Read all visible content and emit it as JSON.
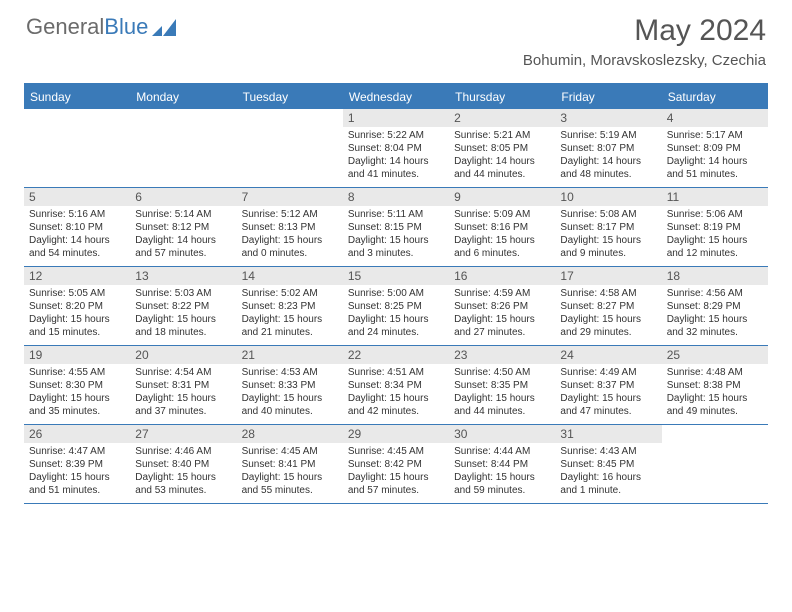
{
  "logo": {
    "text1": "General",
    "text2": "Blue"
  },
  "header": {
    "title": "May 2024",
    "location": "Bohumin, Moravskoslezsky, Czechia"
  },
  "colors": {
    "header_bg": "#3a7ab8",
    "daynum_bg": "#e9e9e9",
    "page_bg": "#ffffff",
    "text": "#333333"
  },
  "day_names": [
    "Sunday",
    "Monday",
    "Tuesday",
    "Wednesday",
    "Thursday",
    "Friday",
    "Saturday"
  ],
  "weeks": [
    [
      null,
      null,
      null,
      {
        "n": "1",
        "sunrise": "5:22 AM",
        "sunset": "8:04 PM",
        "daylight": "14 hours and 41 minutes."
      },
      {
        "n": "2",
        "sunrise": "5:21 AM",
        "sunset": "8:05 PM",
        "daylight": "14 hours and 44 minutes."
      },
      {
        "n": "3",
        "sunrise": "5:19 AM",
        "sunset": "8:07 PM",
        "daylight": "14 hours and 48 minutes."
      },
      {
        "n": "4",
        "sunrise": "5:17 AM",
        "sunset": "8:09 PM",
        "daylight": "14 hours and 51 minutes."
      }
    ],
    [
      {
        "n": "5",
        "sunrise": "5:16 AM",
        "sunset": "8:10 PM",
        "daylight": "14 hours and 54 minutes."
      },
      {
        "n": "6",
        "sunrise": "5:14 AM",
        "sunset": "8:12 PM",
        "daylight": "14 hours and 57 minutes."
      },
      {
        "n": "7",
        "sunrise": "5:12 AM",
        "sunset": "8:13 PM",
        "daylight": "15 hours and 0 minutes."
      },
      {
        "n": "8",
        "sunrise": "5:11 AM",
        "sunset": "8:15 PM",
        "daylight": "15 hours and 3 minutes."
      },
      {
        "n": "9",
        "sunrise": "5:09 AM",
        "sunset": "8:16 PM",
        "daylight": "15 hours and 6 minutes."
      },
      {
        "n": "10",
        "sunrise": "5:08 AM",
        "sunset": "8:17 PM",
        "daylight": "15 hours and 9 minutes."
      },
      {
        "n": "11",
        "sunrise": "5:06 AM",
        "sunset": "8:19 PM",
        "daylight": "15 hours and 12 minutes."
      }
    ],
    [
      {
        "n": "12",
        "sunrise": "5:05 AM",
        "sunset": "8:20 PM",
        "daylight": "15 hours and 15 minutes."
      },
      {
        "n": "13",
        "sunrise": "5:03 AM",
        "sunset": "8:22 PM",
        "daylight": "15 hours and 18 minutes."
      },
      {
        "n": "14",
        "sunrise": "5:02 AM",
        "sunset": "8:23 PM",
        "daylight": "15 hours and 21 minutes."
      },
      {
        "n": "15",
        "sunrise": "5:00 AM",
        "sunset": "8:25 PM",
        "daylight": "15 hours and 24 minutes."
      },
      {
        "n": "16",
        "sunrise": "4:59 AM",
        "sunset": "8:26 PM",
        "daylight": "15 hours and 27 minutes."
      },
      {
        "n": "17",
        "sunrise": "4:58 AM",
        "sunset": "8:27 PM",
        "daylight": "15 hours and 29 minutes."
      },
      {
        "n": "18",
        "sunrise": "4:56 AM",
        "sunset": "8:29 PM",
        "daylight": "15 hours and 32 minutes."
      }
    ],
    [
      {
        "n": "19",
        "sunrise": "4:55 AM",
        "sunset": "8:30 PM",
        "daylight": "15 hours and 35 minutes."
      },
      {
        "n": "20",
        "sunrise": "4:54 AM",
        "sunset": "8:31 PM",
        "daylight": "15 hours and 37 minutes."
      },
      {
        "n": "21",
        "sunrise": "4:53 AM",
        "sunset": "8:33 PM",
        "daylight": "15 hours and 40 minutes."
      },
      {
        "n": "22",
        "sunrise": "4:51 AM",
        "sunset": "8:34 PM",
        "daylight": "15 hours and 42 minutes."
      },
      {
        "n": "23",
        "sunrise": "4:50 AM",
        "sunset": "8:35 PM",
        "daylight": "15 hours and 44 minutes."
      },
      {
        "n": "24",
        "sunrise": "4:49 AM",
        "sunset": "8:37 PM",
        "daylight": "15 hours and 47 minutes."
      },
      {
        "n": "25",
        "sunrise": "4:48 AM",
        "sunset": "8:38 PM",
        "daylight": "15 hours and 49 minutes."
      }
    ],
    [
      {
        "n": "26",
        "sunrise": "4:47 AM",
        "sunset": "8:39 PM",
        "daylight": "15 hours and 51 minutes."
      },
      {
        "n": "27",
        "sunrise": "4:46 AM",
        "sunset": "8:40 PM",
        "daylight": "15 hours and 53 minutes."
      },
      {
        "n": "28",
        "sunrise": "4:45 AM",
        "sunset": "8:41 PM",
        "daylight": "15 hours and 55 minutes."
      },
      {
        "n": "29",
        "sunrise": "4:45 AM",
        "sunset": "8:42 PM",
        "daylight": "15 hours and 57 minutes."
      },
      {
        "n": "30",
        "sunrise": "4:44 AM",
        "sunset": "8:44 PM",
        "daylight": "15 hours and 59 minutes."
      },
      {
        "n": "31",
        "sunrise": "4:43 AM",
        "sunset": "8:45 PM",
        "daylight": "16 hours and 1 minute."
      },
      null
    ]
  ]
}
